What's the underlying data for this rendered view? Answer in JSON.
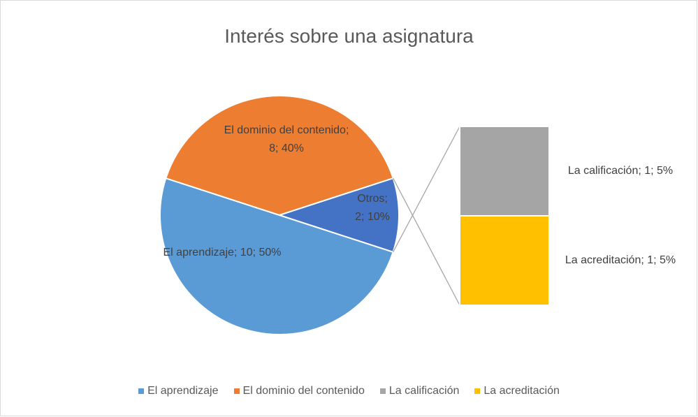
{
  "chart_data": {
    "type": "bar-of-pie",
    "title": "Interés sobre una asignatura",
    "categories": [
      "El aprendizaje",
      "El dominio del contenido",
      "Otros"
    ],
    "values": [
      10,
      8,
      2
    ],
    "value_labels": [
      "El aprendizaje; 10; 50%",
      "El dominio del contenido; 8; 40%",
      "Otros; 2; 10%"
    ],
    "colors": [
      "#5b9bd5",
      "#ed7d31",
      "#4472c4"
    ],
    "secondary": {
      "categories": [
        "La calificación",
        "La acreditación"
      ],
      "values": [
        1,
        1
      ],
      "value_labels": [
        "La calificación; 1; 5%",
        "La acreditación; 1; 5%"
      ],
      "colors": [
        "#a5a5a5",
        "#ffc000"
      ]
    },
    "legend": "bottom"
  }
}
